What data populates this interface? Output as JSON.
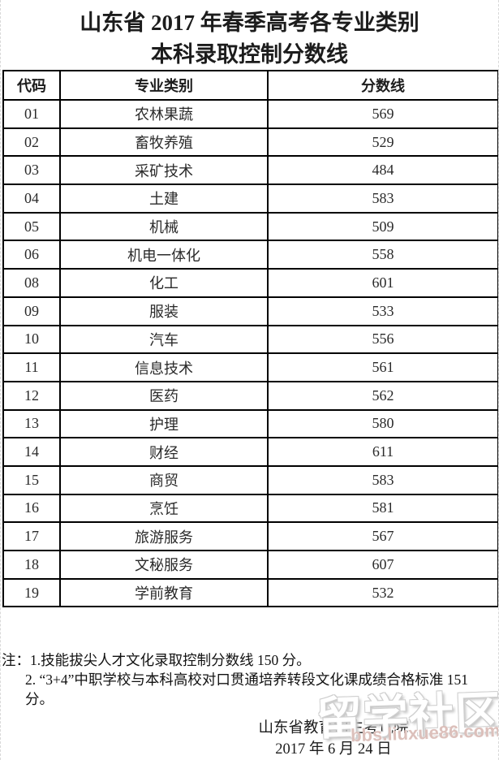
{
  "document": {
    "title_line1": "山东省 2017 年春季高考各专业类别",
    "title_line2": "本科录取控制分数线"
  },
  "table": {
    "headers": [
      "代码",
      "专业类别",
      "分数线"
    ],
    "rows": [
      {
        "code": "01",
        "category": "农林果蔬",
        "score": "569"
      },
      {
        "code": "02",
        "category": "畜牧养殖",
        "score": "529"
      },
      {
        "code": "03",
        "category": "采矿技术",
        "score": "484"
      },
      {
        "code": "04",
        "category": "土建",
        "score": "583"
      },
      {
        "code": "05",
        "category": "机械",
        "score": "509"
      },
      {
        "code": "06",
        "category": "机电一体化",
        "score": "558"
      },
      {
        "code": "08",
        "category": "化工",
        "score": "601"
      },
      {
        "code": "09",
        "category": "服装",
        "score": "533"
      },
      {
        "code": "10",
        "category": "汽车",
        "score": "556"
      },
      {
        "code": "11",
        "category": "信息技术",
        "score": "561"
      },
      {
        "code": "12",
        "category": "医药",
        "score": "562"
      },
      {
        "code": "13",
        "category": "护理",
        "score": "580"
      },
      {
        "code": "14",
        "category": "财经",
        "score": "611"
      },
      {
        "code": "15",
        "category": "商贸",
        "score": "583"
      },
      {
        "code": "16",
        "category": "烹饪",
        "score": "581"
      },
      {
        "code": "17",
        "category": "旅游服务",
        "score": "567"
      },
      {
        "code": "18",
        "category": "文秘服务",
        "score": "607"
      },
      {
        "code": "19",
        "category": "学前教育",
        "score": "532"
      }
    ]
  },
  "notes": {
    "line1": "注：1.技能拔尖人才文化录取控制分数线 150 分。",
    "line2": "2. “3+4”中职学校与本科高校对口贯通培养转段文化课成绩合格标准 151 分。"
  },
  "footer": {
    "issuer": "山东省教育招生考试院",
    "date": "2017 年 6 月 24 日"
  },
  "watermark": {
    "text": "留学社区",
    "url": "bbs.liuxue86.com"
  },
  "colors": {
    "table_border": "#000000",
    "text": "#1c1c1c",
    "watermark_url": "#dcc0bb"
  }
}
